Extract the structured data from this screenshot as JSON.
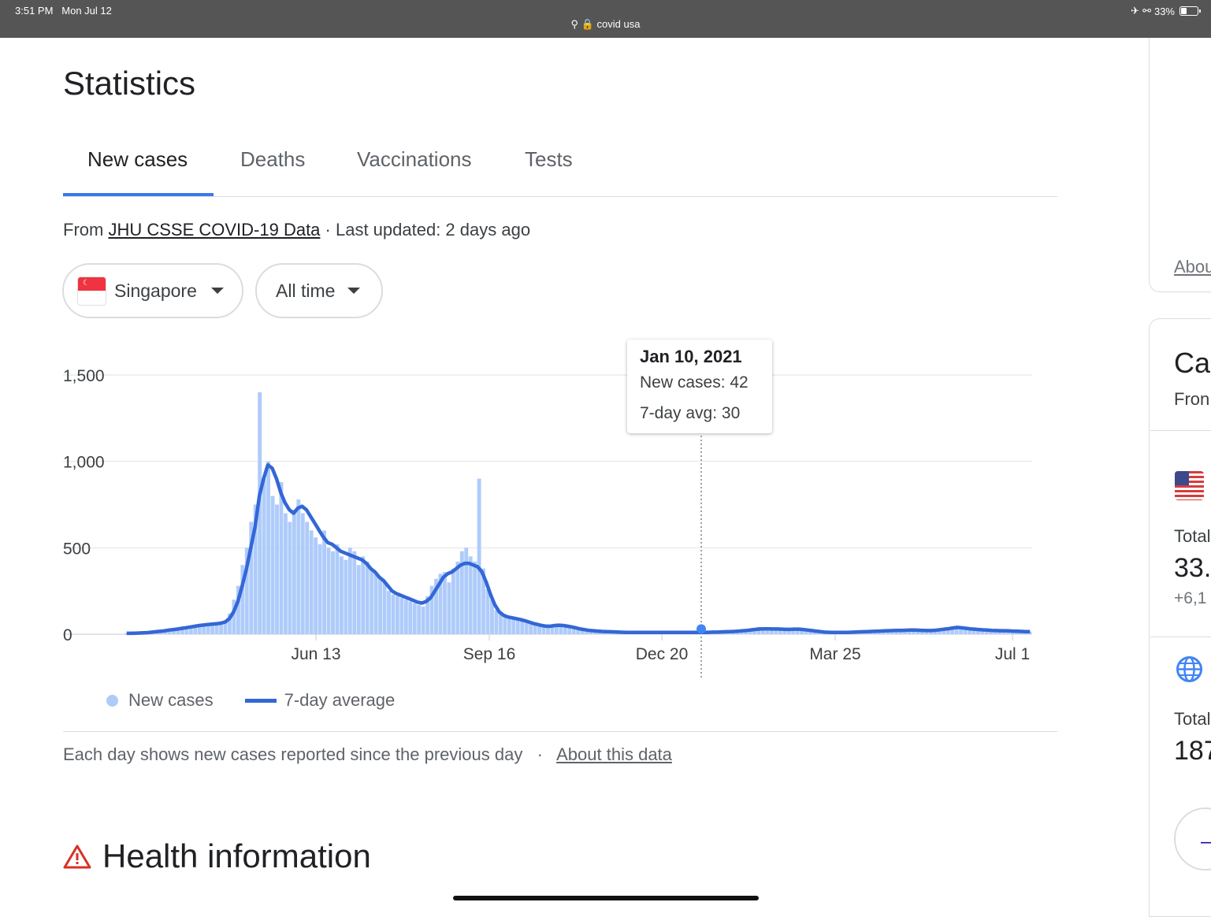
{
  "status_bar": {
    "time": "3:51 PM",
    "date": "Mon Jul 12",
    "url": "covid usa",
    "battery": "33%"
  },
  "page": {
    "title": "Statistics",
    "tabs": [
      {
        "label": "New cases",
        "active": true
      },
      {
        "label": "Deaths",
        "active": false
      },
      {
        "label": "Vaccinations",
        "active": false
      },
      {
        "label": "Tests",
        "active": false
      }
    ],
    "source_prefix": "From",
    "source_link": "JHU CSSE COVID-19 Data",
    "source_suffix": " · Last updated: 2 days ago",
    "country_select": "Singapore",
    "range_select": "All time",
    "tooltip": {
      "date": "Jan 10, 2021",
      "new_cases": "New cases: 42",
      "avg": "7-day avg: 30"
    },
    "legend": {
      "bars": "New cases",
      "line": "7-day average"
    },
    "footnote": "Each day shows new cases reported since the previous day",
    "footnote_sep": "·",
    "footnote_link": "About this data",
    "health_title": "Health information"
  },
  "side_panel": {
    "about_link": "Abou",
    "card_title": "Ca",
    "card_sub": "Fron",
    "us_total_label": "Total",
    "us_total_value": "33.",
    "us_delta": "+6,1",
    "world_total_label": "Total",
    "world_total_value": "187"
  },
  "colors": {
    "accent": "#3b78e7",
    "bars": "#aecbfa",
    "line": "#3367d6"
  },
  "chart_data": {
    "type": "bar",
    "y_ticks": [
      "0",
      "500",
      "1,000",
      "1,500"
    ],
    "x_ticks": [
      "Jun 13",
      "Sep 16",
      "Dec 20",
      "Mar 25",
      "Jul 1"
    ],
    "ylim": [
      0,
      1500
    ],
    "grid": true,
    "legend_position": "bottom-left",
    "highlight": {
      "date": "Jan 10, 2021",
      "new_cases": 42,
      "avg": 30
    },
    "series": [
      {
        "name": "New cases",
        "type": "bar",
        "values": [
          5,
          5,
          8,
          10,
          8,
          12,
          15,
          20,
          18,
          25,
          30,
          28,
          35,
          40,
          45,
          50,
          48,
          55,
          60,
          58,
          65,
          60,
          70,
          80,
          120,
          200,
          280,
          400,
          500,
          650,
          750,
          1400,
          900,
          1000,
          800,
          750,
          880,
          700,
          650,
          720,
          780,
          700,
          650,
          600,
          560,
          520,
          600,
          500,
          480,
          520,
          450,
          430,
          500,
          480,
          400,
          450,
          420,
          380,
          350,
          320,
          300,
          250,
          230,
          220,
          210,
          200,
          190,
          180,
          170,
          160,
          220,
          280,
          320,
          350,
          360,
          300,
          380,
          420,
          480,
          500,
          450,
          420,
          900,
          380,
          260,
          200,
          140,
          120,
          110,
          100,
          90,
          85,
          80,
          70,
          60,
          55,
          50,
          45,
          40,
          55,
          60,
          50,
          45,
          40,
          35,
          30,
          25,
          20,
          20,
          18,
          16,
          15,
          14,
          12,
          12,
          10,
          10,
          10,
          10,
          10,
          10,
          10,
          10,
          10,
          10,
          10,
          10,
          10,
          10,
          10,
          10,
          10,
          10,
          10,
          10,
          12,
          12,
          12,
          12,
          15,
          15,
          18,
          20,
          20,
          25,
          30,
          35,
          42,
          40,
          35,
          30,
          32,
          28,
          25,
          30,
          35,
          30,
          25,
          20,
          18,
          15,
          12,
          10,
          10,
          10,
          10,
          10,
          10,
          12,
          12,
          15,
          15,
          15,
          18,
          18,
          20,
          20,
          22,
          22,
          22,
          25,
          25,
          25,
          25,
          22,
          22,
          20,
          20,
          25,
          28,
          30,
          35,
          40,
          45,
          40,
          35,
          30,
          30,
          28,
          25,
          25,
          22,
          20,
          20,
          20,
          20,
          18,
          15,
          15,
          15,
          15
        ]
      },
      {
        "name": "7-day average",
        "type": "line",
        "values": [
          5,
          5,
          6,
          7,
          8,
          9,
          12,
          15,
          17,
          20,
          24,
          27,
          30,
          34,
          38,
          42,
          46,
          50,
          53,
          56,
          58,
          60,
          64,
          70,
          90,
          130,
          190,
          280,
          380,
          500,
          620,
          800,
          900,
          980,
          960,
          900,
          820,
          760,
          720,
          700,
          730,
          740,
          720,
          680,
          640,
          600,
          560,
          530,
          520,
          500,
          480,
          470,
          460,
          450,
          440,
          430,
          410,
          380,
          360,
          330,
          310,
          280,
          250,
          235,
          225,
          215,
          205,
          195,
          185,
          180,
          190,
          210,
          250,
          290,
          330,
          350,
          360,
          380,
          400,
          410,
          410,
          400,
          390,
          360,
          300,
          230,
          170,
          130,
          110,
          100,
          95,
          90,
          85,
          78,
          70,
          62,
          56,
          50,
          46,
          46,
          50,
          52,
          50,
          46,
          42,
          36,
          30,
          26,
          22,
          20,
          18,
          16,
          15,
          14,
          13,
          12,
          11,
          10,
          10,
          10,
          10,
          10,
          10,
          10,
          10,
          10,
          10,
          10,
          10,
          10,
          10,
          10,
          10,
          10,
          10,
          10,
          11,
          12,
          12,
          13,
          14,
          15,
          16,
          18,
          20,
          22,
          25,
          28,
          30,
          31,
          31,
          30,
          30,
          29,
          28,
          28,
          29,
          29,
          27,
          24,
          21,
          18,
          15,
          12,
          11,
          10,
          10,
          10,
          10,
          11,
          12,
          13,
          14,
          15,
          16,
          17,
          18,
          19,
          20,
          21,
          22,
          22,
          23,
          24,
          24,
          23,
          22,
          21,
          21,
          23,
          26,
          29,
          32,
          36,
          39,
          37,
          34,
          31,
          29,
          27,
          25,
          24,
          22,
          21,
          20,
          20,
          19,
          18,
          17,
          16,
          15,
          15
        ]
      }
    ]
  }
}
